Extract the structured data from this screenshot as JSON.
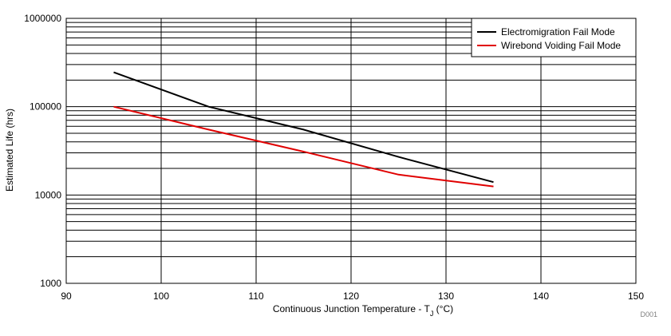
{
  "chart_data": {
    "type": "line",
    "title": "",
    "xlabel": "Continuous Junction Temperature - T",
    "xlabel_sub": "J",
    "xlabel_unit": " (°C)",
    "ylabel": "Estimated Life (hrs)",
    "xlim": [
      90,
      150
    ],
    "ylim": [
      1000,
      1000000
    ],
    "yscale": "log",
    "x_ticks": [
      90,
      100,
      110,
      120,
      130,
      140,
      150
    ],
    "x_tick_labels": [
      "90",
      "100",
      "110",
      "120",
      "130",
      "140",
      "150"
    ],
    "y_ticks": [
      1000,
      10000,
      100000,
      1000000
    ],
    "y_tick_labels": [
      "1000",
      "10000",
      "100000",
      "1000000"
    ],
    "grid": true,
    "legend_position": "top-right",
    "series": [
      {
        "name": "Electromigration Fail Mode",
        "color": "#000000",
        "x": [
          95,
          105,
          115,
          125,
          135
        ],
        "y": [
          245000,
          100000,
          55000,
          27000,
          14000
        ]
      },
      {
        "name": "Wirebond Voiding Fail Mode",
        "color": "#e00000",
        "x": [
          95,
          105,
          115,
          125,
          135
        ],
        "y": [
          100000,
          55000,
          31000,
          17000,
          12500
        ]
      }
    ],
    "footnote": "D001"
  }
}
